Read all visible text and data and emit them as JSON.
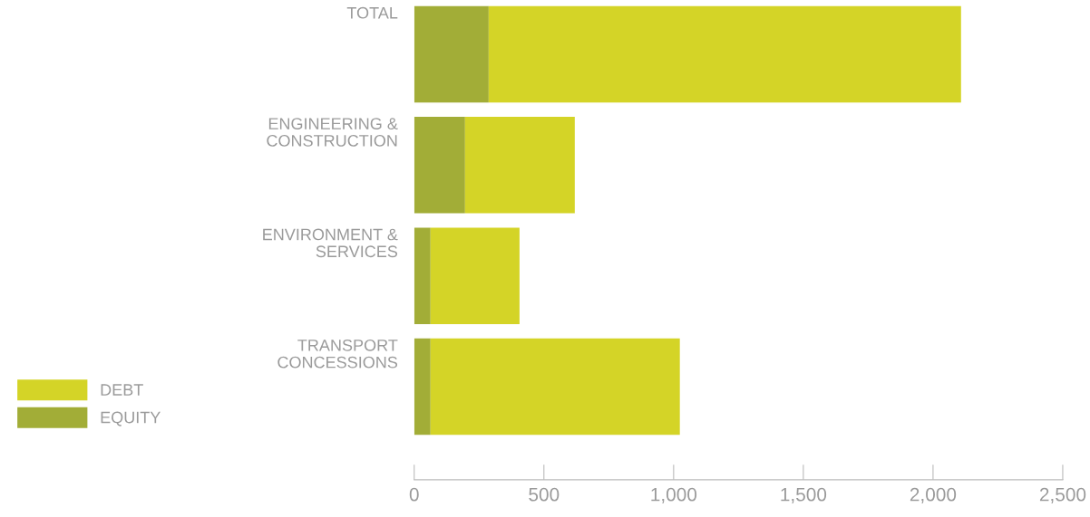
{
  "chart_data": {
    "type": "bar",
    "orientation": "horizontal",
    "stacked": true,
    "categories": [
      "TOTAL",
      "ENGINEERING &\nCONSTRUCTION",
      "ENVIRONMENT &\nSERVICES",
      "TRANSPORT\nCONCESSIONS"
    ],
    "series": [
      {
        "name": "EQUITY",
        "color": "#a2ad37",
        "values": [
          287,
          196,
          63,
          63
        ]
      },
      {
        "name": "DEBT",
        "color": "#d4d427",
        "values": [
          1821,
          423,
          343,
          961
        ]
      }
    ],
    "xlim": [
      0,
      2500
    ],
    "xticks": [
      0,
      {
        "value": 500,
        "label": "500"
      },
      {
        "value": 1000,
        "label": "1,000"
      },
      {
        "value": 1500,
        "label": "1,500"
      },
      {
        "value": 2000,
        "label": "2,000"
      },
      {
        "value": 2500,
        "label": "2,500"
      }
    ],
    "grid": false,
    "legend": "bottom left"
  }
}
